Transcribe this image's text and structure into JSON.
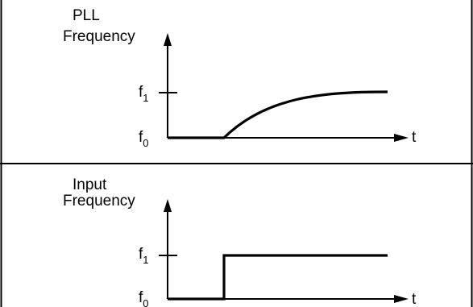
{
  "top_panel": {
    "label_line1": "PLL",
    "label_line2": "Frequency",
    "level_high": {
      "base": "f",
      "sub": "1"
    },
    "level_low": {
      "base": "f",
      "sub": "0"
    },
    "time_axis": "t"
  },
  "bottom_panel": {
    "label_line1": "Input",
    "label_line2": "Frequency",
    "level_high": {
      "base": "f",
      "sub": "1"
    },
    "level_low": {
      "base": "f",
      "sub": "0"
    },
    "time_axis": "t"
  }
}
